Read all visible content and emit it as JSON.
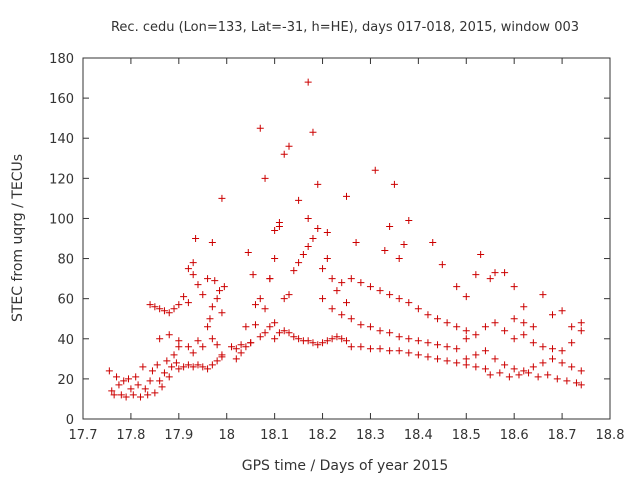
{
  "chart_data": {
    "type": "scatter",
    "title": "Rec. cedu (Lon=133, Lat=-31, h=HE), days 017-018, 2015, window 003",
    "xlabel": "GPS time / Days of year 2015",
    "ylabel": "STEC from uqrg / TECUs",
    "xlim": [
      17.7,
      18.8
    ],
    "ylim": [
      0,
      180
    ],
    "xticks": [
      "17.7",
      "17.8",
      "17.9",
      "18",
      "18.1",
      "18.2",
      "18.3",
      "18.4",
      "18.5",
      "18.6",
      "18.7",
      "18.8"
    ],
    "yticks": [
      "0",
      "20",
      "40",
      "60",
      "80",
      "100",
      "120",
      "140",
      "160",
      "180"
    ],
    "grid": false,
    "marker": "+",
    "color": "#cc0000",
    "series": [
      {
        "points": [
          [
            17.755,
            24
          ],
          [
            17.76,
            14
          ],
          [
            17.765,
            12
          ],
          [
            17.77,
            21
          ],
          [
            17.775,
            17
          ],
          [
            17.78,
            12
          ],
          [
            17.785,
            19
          ],
          [
            17.79,
            11
          ],
          [
            17.795,
            20
          ],
          [
            17.8,
            15
          ],
          [
            17.805,
            12
          ],
          [
            17.81,
            21
          ],
          [
            17.815,
            17
          ],
          [
            17.82,
            11
          ],
          [
            17.825,
            26
          ],
          [
            17.83,
            15
          ],
          [
            17.835,
            12
          ],
          [
            17.84,
            19
          ],
          [
            17.845,
            24
          ],
          [
            17.85,
            13
          ],
          [
            17.855,
            27
          ],
          [
            17.86,
            19
          ],
          [
            17.865,
            16
          ],
          [
            17.87,
            23
          ],
          [
            17.875,
            29
          ],
          [
            17.88,
            21
          ],
          [
            17.885,
            26
          ],
          [
            17.89,
            32
          ],
          [
            17.895,
            28
          ],
          [
            17.9,
            36
          ],
          [
            17.84,
            57
          ],
          [
            17.85,
            56
          ],
          [
            17.86,
            55
          ],
          [
            17.87,
            54
          ],
          [
            17.88,
            53
          ],
          [
            17.89,
            55
          ],
          [
            17.9,
            57
          ],
          [
            17.91,
            61
          ],
          [
            17.92,
            58
          ],
          [
            17.93,
            72
          ],
          [
            17.94,
            67
          ],
          [
            17.95,
            62
          ],
          [
            17.96,
            70
          ],
          [
            17.965,
            50
          ],
          [
            17.97,
            56
          ],
          [
            17.975,
            69
          ],
          [
            17.98,
            60
          ],
          [
            17.985,
            64
          ],
          [
            17.99,
            53
          ],
          [
            17.995,
            66
          ],
          [
            17.86,
            40
          ],
          [
            17.88,
            42
          ],
          [
            17.9,
            39
          ],
          [
            17.92,
            36
          ],
          [
            17.93,
            33
          ],
          [
            17.94,
            39
          ],
          [
            17.95,
            36
          ],
          [
            17.96,
            46
          ],
          [
            17.97,
            40
          ],
          [
            17.98,
            37
          ],
          [
            17.99,
            31
          ],
          [
            17.9,
            25
          ],
          [
            17.91,
            26
          ],
          [
            17.92,
            27
          ],
          [
            17.93,
            26
          ],
          [
            17.94,
            27
          ],
          [
            17.95,
            26
          ],
          [
            17.96,
            25
          ],
          [
            17.97,
            27
          ],
          [
            17.98,
            29
          ],
          [
            17.99,
            32
          ],
          [
            17.935,
            90
          ],
          [
            17.97,
            88
          ],
          [
            17.99,
            110
          ],
          [
            17.92,
            75
          ],
          [
            17.93,
            78
          ],
          [
            18.01,
            36
          ],
          [
            18.02,
            35
          ],
          [
            18.03,
            37
          ],
          [
            18.04,
            46
          ],
          [
            18.05,
            38
          ],
          [
            18.06,
            47
          ],
          [
            18.07,
            41
          ],
          [
            18.08,
            43
          ],
          [
            18.09,
            46
          ],
          [
            18.1,
            48
          ],
          [
            18.02,
            30
          ],
          [
            18.03,
            33
          ],
          [
            18.04,
            36
          ],
          [
            18.05,
            38
          ],
          [
            18.06,
            57
          ],
          [
            18.07,
            60
          ],
          [
            18.08,
            55
          ],
          [
            18.09,
            70
          ],
          [
            18.1,
            80
          ],
          [
            18.11,
            96
          ],
          [
            18.045,
            83
          ],
          [
            18.055,
            72
          ],
          [
            18.07,
            145
          ],
          [
            18.08,
            120
          ],
          [
            18.09,
            70
          ],
          [
            18.1,
            94
          ],
          [
            18.11,
            98
          ],
          [
            18.12,
            132
          ],
          [
            18.13,
            136
          ],
          [
            18.15,
            109
          ],
          [
            18.17,
            168
          ],
          [
            18.18,
            143
          ],
          [
            18.1,
            40
          ],
          [
            18.11,
            43
          ],
          [
            18.12,
            44
          ],
          [
            18.13,
            43
          ],
          [
            18.14,
            41
          ],
          [
            18.15,
            40
          ],
          [
            18.16,
            39
          ],
          [
            18.17,
            39
          ],
          [
            18.18,
            38
          ],
          [
            18.19,
            37
          ],
          [
            18.2,
            38
          ],
          [
            18.21,
            39
          ],
          [
            18.22,
            40
          ],
          [
            18.23,
            41
          ],
          [
            18.24,
            40
          ],
          [
            18.25,
            39
          ],
          [
            18.12,
            60
          ],
          [
            18.13,
            62
          ],
          [
            18.14,
            74
          ],
          [
            18.15,
            78
          ],
          [
            18.16,
            82
          ],
          [
            18.17,
            86
          ],
          [
            18.18,
            90
          ],
          [
            18.19,
            95
          ],
          [
            18.2,
            75
          ],
          [
            18.21,
            80
          ],
          [
            18.22,
            70
          ],
          [
            18.23,
            64
          ],
          [
            18.24,
            68
          ],
          [
            18.25,
            58
          ],
          [
            18.17,
            100
          ],
          [
            18.19,
            117
          ],
          [
            18.21,
            93
          ],
          [
            18.25,
            111
          ],
          [
            18.27,
            88
          ],
          [
            18.31,
            124
          ],
          [
            18.33,
            84
          ],
          [
            18.34,
            96
          ],
          [
            18.35,
            117
          ],
          [
            18.36,
            80
          ],
          [
            18.37,
            87
          ],
          [
            18.38,
            99
          ],
          [
            18.2,
            60
          ],
          [
            18.22,
            55
          ],
          [
            18.24,
            52
          ],
          [
            18.26,
            50
          ],
          [
            18.28,
            47
          ],
          [
            18.3,
            46
          ],
          [
            18.32,
            44
          ],
          [
            18.34,
            43
          ],
          [
            18.36,
            41
          ],
          [
            18.38,
            40
          ],
          [
            18.4,
            39
          ],
          [
            18.42,
            38
          ],
          [
            18.44,
            37
          ],
          [
            18.46,
            36
          ],
          [
            18.48,
            35
          ],
          [
            18.26,
            36
          ],
          [
            18.28,
            36
          ],
          [
            18.3,
            35
          ],
          [
            18.32,
            35
          ],
          [
            18.34,
            34
          ],
          [
            18.36,
            34
          ],
          [
            18.38,
            33
          ],
          [
            18.4,
            32
          ],
          [
            18.42,
            31
          ],
          [
            18.44,
            30
          ],
          [
            18.46,
            29
          ],
          [
            18.48,
            28
          ],
          [
            18.5,
            27
          ],
          [
            18.52,
            26
          ],
          [
            18.54,
            25
          ],
          [
            18.26,
            70
          ],
          [
            18.28,
            68
          ],
          [
            18.3,
            66
          ],
          [
            18.32,
            64
          ],
          [
            18.34,
            62
          ],
          [
            18.36,
            60
          ],
          [
            18.38,
            58
          ],
          [
            18.4,
            55
          ],
          [
            18.42,
            52
          ],
          [
            18.44,
            50
          ],
          [
            18.46,
            48
          ],
          [
            18.48,
            46
          ],
          [
            18.5,
            44
          ],
          [
            18.43,
            88
          ],
          [
            18.45,
            77
          ],
          [
            18.48,
            66
          ],
          [
            18.5,
            61
          ],
          [
            18.52,
            72
          ],
          [
            18.53,
            82
          ],
          [
            18.55,
            70
          ],
          [
            18.56,
            73
          ],
          [
            18.58,
            73
          ],
          [
            18.6,
            66
          ],
          [
            18.62,
            56
          ],
          [
            18.66,
            62
          ],
          [
            18.5,
            30
          ],
          [
            18.52,
            32
          ],
          [
            18.54,
            34
          ],
          [
            18.56,
            30
          ],
          [
            18.58,
            27
          ],
          [
            18.6,
            25
          ],
          [
            18.62,
            24
          ],
          [
            18.64,
            26
          ],
          [
            18.66,
            28
          ],
          [
            18.68,
            30
          ],
          [
            18.7,
            28
          ],
          [
            18.72,
            26
          ],
          [
            18.74,
            24
          ],
          [
            18.5,
            40
          ],
          [
            18.52,
            42
          ],
          [
            18.54,
            46
          ],
          [
            18.56,
            48
          ],
          [
            18.58,
            44
          ],
          [
            18.6,
            40
          ],
          [
            18.62,
            42
          ],
          [
            18.64,
            38
          ],
          [
            18.66,
            36
          ],
          [
            18.68,
            35
          ],
          [
            18.7,
            34
          ],
          [
            18.72,
            38
          ],
          [
            18.74,
            44
          ],
          [
            18.55,
            22
          ],
          [
            18.57,
            23
          ],
          [
            18.59,
            21
          ],
          [
            18.61,
            22
          ],
          [
            18.63,
            23
          ],
          [
            18.65,
            21
          ],
          [
            18.67,
            22
          ],
          [
            18.69,
            20
          ],
          [
            18.71,
            19
          ],
          [
            18.73,
            18
          ],
          [
            18.74,
            17
          ],
          [
            18.6,
            50
          ],
          [
            18.62,
            48
          ],
          [
            18.64,
            46
          ],
          [
            18.68,
            52
          ],
          [
            18.7,
            54
          ],
          [
            18.72,
            46
          ],
          [
            18.74,
            48
          ]
        ]
      }
    ]
  }
}
